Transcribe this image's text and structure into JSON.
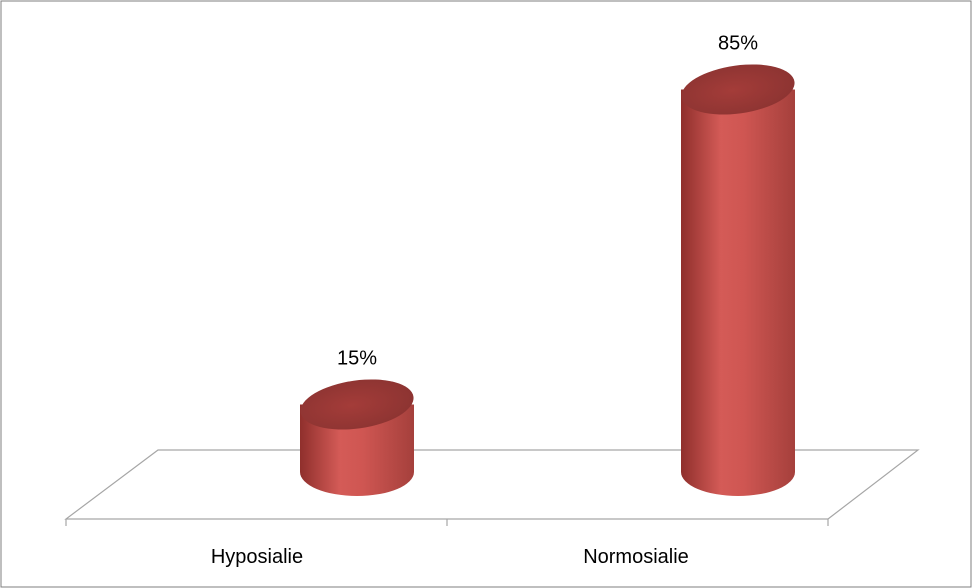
{
  "chart_data": {
    "type": "bar",
    "style": "3d-cylinder",
    "categories": [
      "Hyposialie",
      "Normosialie"
    ],
    "values": [
      15,
      85
    ],
    "data_labels": [
      "15%",
      "85%"
    ],
    "unit": "%",
    "title": "",
    "xlabel": "",
    "ylabel": "",
    "ylim": [
      0,
      100
    ],
    "grid": false,
    "legend": "none",
    "colors": {
      "bar_body": "#c0504d",
      "bar_highlight": "#e07a76",
      "bar_shadow": "#8f2f2c",
      "bar_top": "#9c3835",
      "floor_line": "#a6a6a6",
      "frame_border": "#7f7f7f"
    }
  }
}
